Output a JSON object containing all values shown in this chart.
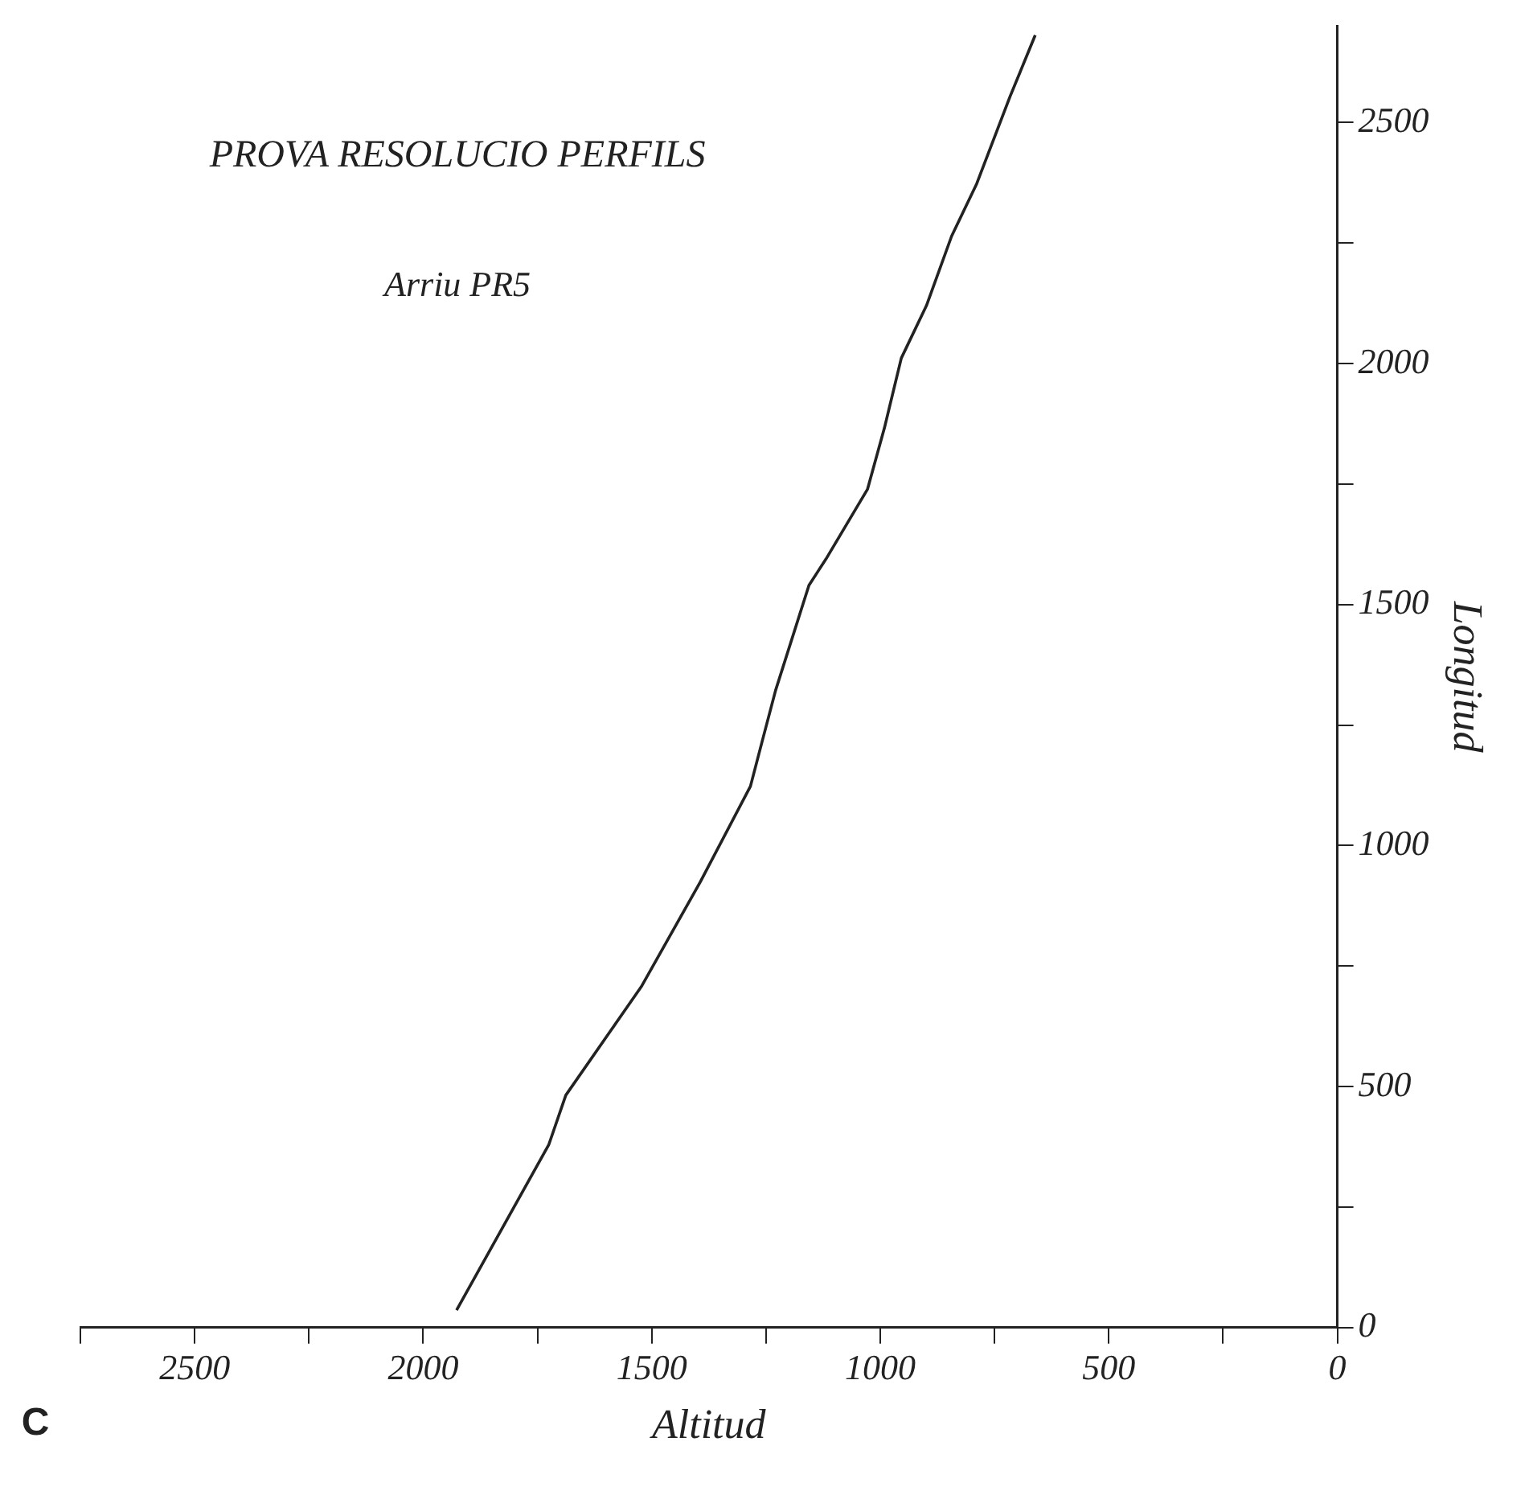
{
  "chart_data": {
    "type": "line",
    "title": "PROVA RESOLUCIO PERFILS",
    "subtitle": "Arriu PR5",
    "xlabel": "Altitud",
    "ylabel": "Longitud",
    "annotations": [
      "C"
    ],
    "x": [
      1927,
      1725,
      1688,
      1523,
      1394,
      1284,
      1259,
      1229,
      1156,
      1119,
      1028,
      991,
      954,
      899,
      844,
      789,
      716,
      661
    ],
    "series": [
      {
        "color": "#222222",
        "values": [
          36,
          380,
          482,
          707,
          924,
          1123,
          1214,
          1322,
          1540,
          1594,
          1739,
          1866,
          2011,
          2120,
          2264,
          2373,
          2554,
          2681
        ]
      }
    ],
    "xlim": [
      2750,
      0
    ],
    "ylim": [
      0,
      2700
    ],
    "yticks": [
      0,
      {
        "value": 250,
        "label": null
      },
      500,
      {
        "value": 750,
        "label": null
      },
      1000,
      {
        "value": 1250,
        "label": null
      },
      1500,
      {
        "value": 1750,
        "label": null
      },
      2000,
      {
        "value": 2250,
        "label": null
      },
      2500
    ],
    "xticks": [
      {
        "value": 2750,
        "label": null
      },
      2500,
      {
        "value": 2250,
        "label": null
      },
      2000,
      {
        "value": 1750,
        "label": null
      },
      1500,
      {
        "value": 1250,
        "label": null
      },
      1000,
      {
        "value": 750,
        "label": null
      },
      500,
      {
        "value": 250,
        "label": null
      },
      0
    ],
    "grid": false,
    "legend": false,
    "marker": "none",
    "line_style": "solid"
  }
}
